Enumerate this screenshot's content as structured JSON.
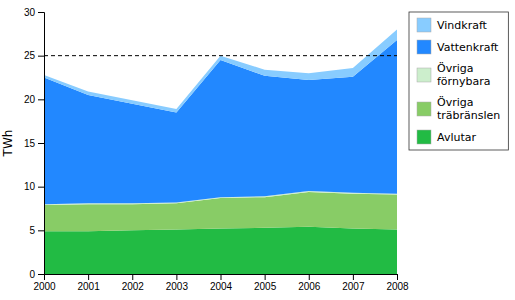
{
  "chart_data": {
    "type": "area",
    "stacked": true,
    "x": [
      2000,
      2001,
      2002,
      2003,
      2004,
      2005,
      2006,
      2007,
      2008
    ],
    "xlim": [
      2000,
      2008
    ],
    "xticks": [
      2000,
      2001,
      2002,
      2003,
      2004,
      2005,
      2006,
      2007,
      2008
    ],
    "ylim": [
      0,
      30
    ],
    "yticks": [
      0,
      5,
      10,
      15,
      20,
      25,
      30
    ],
    "ylabel": "TWh",
    "grid": false,
    "legend": "right",
    "hlines": [
      25
    ],
    "series": [
      {
        "name": "Avlutar",
        "color": "#22bb44",
        "values": [
          4.9,
          4.9,
          5.0,
          5.1,
          5.2,
          5.3,
          5.4,
          5.2,
          5.1
        ]
      },
      {
        "name": "Övriga\nträbränslen",
        "color": "#88cc66",
        "values": [
          3.0,
          3.1,
          3.0,
          3.0,
          3.5,
          3.5,
          4.0,
          4.0,
          4.0
        ]
      },
      {
        "name": "Övriga\nförnybara",
        "color": "#cceecc",
        "values": [
          0.1,
          0.1,
          0.1,
          0.1,
          0.1,
          0.1,
          0.1,
          0.1,
          0.1
        ]
      },
      {
        "name": "Vattenkraft",
        "color": "#2288ff",
        "values": [
          14.5,
          12.4,
          11.4,
          10.3,
          15.7,
          13.8,
          12.7,
          13.3,
          17.6
        ]
      },
      {
        "name": "Vindkraft",
        "color": "#88ccff",
        "values": [
          0.3,
          0.4,
          0.4,
          0.4,
          0.5,
          0.7,
          0.8,
          1.0,
          1.2
        ]
      }
    ]
  }
}
